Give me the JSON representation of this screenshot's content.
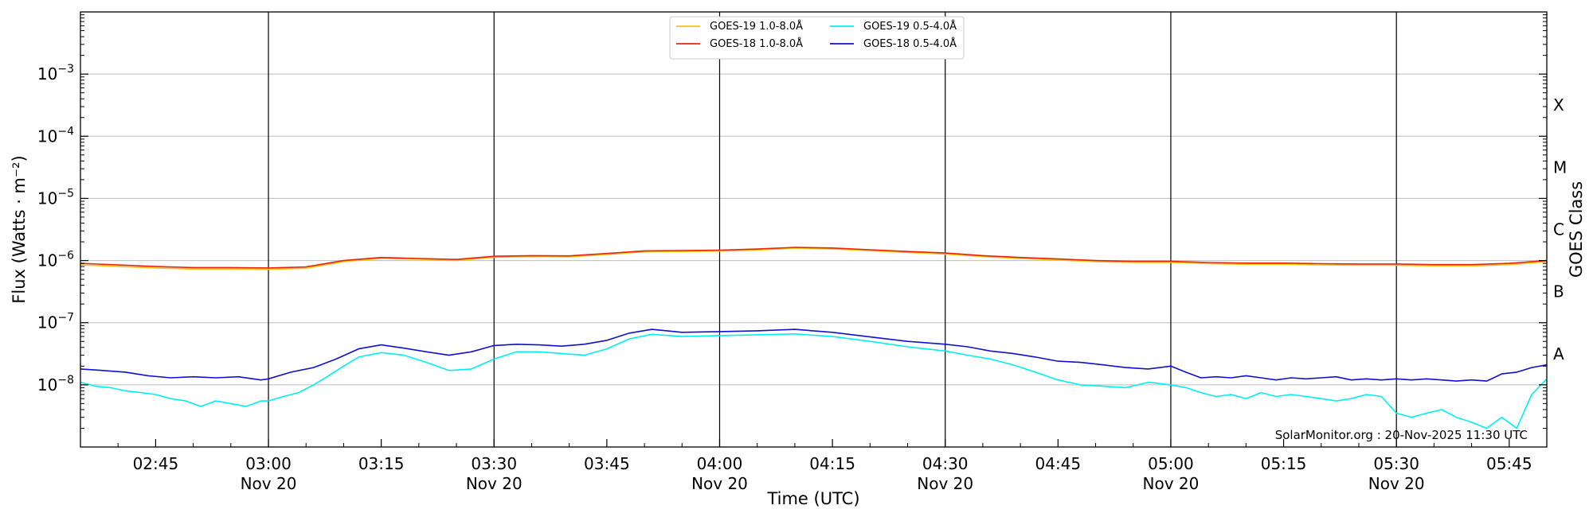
{
  "chart_data": {
    "type": "line",
    "xlabel": "Time (UTC)",
    "ylabel": "Flux (Watts · m⁻²)",
    "ylabel_right": "GOES Class",
    "credit": "SolarMonitor.org : 20-Nov-2025 11:30 UTC",
    "xlim": [
      "02:35",
      "05:50"
    ],
    "ylim": [
      1e-09,
      0.01
    ],
    "yscale": "log",
    "grid": "horizontal",
    "legend_position": "top-center",
    "x_ticks": [
      {
        "t": "02:45",
        "label": "02:45",
        "sub": ""
      },
      {
        "t": "03:00",
        "label": "03:00",
        "sub": "Nov 20"
      },
      {
        "t": "03:15",
        "label": "03:15",
        "sub": ""
      },
      {
        "t": "03:30",
        "label": "03:30",
        "sub": "Nov 20"
      },
      {
        "t": "03:45",
        "label": "03:45",
        "sub": ""
      },
      {
        "t": "04:00",
        "label": "04:00",
        "sub": "Nov 20"
      },
      {
        "t": "04:15",
        "label": "04:15",
        "sub": ""
      },
      {
        "t": "04:30",
        "label": "04:30",
        "sub": "Nov 20"
      },
      {
        "t": "04:45",
        "label": "04:45",
        "sub": ""
      },
      {
        "t": "05:00",
        "label": "05:00",
        "sub": "Nov 20"
      },
      {
        "t": "05:15",
        "label": "05:15",
        "sub": ""
      },
      {
        "t": "05:30",
        "label": "05:30",
        "sub": "Nov 20"
      },
      {
        "t": "05:45",
        "label": "05:45",
        "sub": ""
      }
    ],
    "y_ticks": [
      {
        "value": 1e-08,
        "mantissa": "10",
        "exp": "−8"
      },
      {
        "value": 1e-07,
        "mantissa": "10",
        "exp": "−7"
      },
      {
        "value": 1e-06,
        "mantissa": "10",
        "exp": "−6"
      },
      {
        "value": 1e-05,
        "mantissa": "10",
        "exp": "−5"
      },
      {
        "value": 0.0001,
        "mantissa": "10",
        "exp": "−4"
      },
      {
        "value": 0.001,
        "mantissa": "10",
        "exp": "−3"
      }
    ],
    "vlines": [
      "03:00",
      "03:30",
      "04:00",
      "04:30",
      "05:00",
      "05:30"
    ],
    "goes_classes": [
      {
        "label": "A",
        "value": 3.16e-08
      },
      {
        "label": "B",
        "value": 3.16e-07
      },
      {
        "label": "C",
        "value": 3.16e-06
      },
      {
        "label": "M",
        "value": 3.16e-05
      },
      {
        "label": "X",
        "value": 0.000316
      }
    ],
    "series": [
      {
        "name": "GOES-19 1.0-8.0Å",
        "color": "#f0c419",
        "x": [
          "02:35",
          "02:40",
          "02:45",
          "02:50",
          "02:55",
          "03:00",
          "03:05",
          "03:10",
          "03:15",
          "03:20",
          "03:25",
          "03:30",
          "03:35",
          "03:40",
          "03:45",
          "03:50",
          "03:55",
          "04:00",
          "04:05",
          "04:10",
          "04:15",
          "04:20",
          "04:25",
          "04:30",
          "04:35",
          "04:40",
          "04:45",
          "04:50",
          "04:55",
          "05:00",
          "05:05",
          "05:10",
          "05:15",
          "05:20",
          "05:25",
          "05:30",
          "05:35",
          "05:40",
          "05:45",
          "05:50"
        ],
        "values": [
          8.5e-07,
          8e-07,
          7.6e-07,
          7.3e-07,
          7.3e-07,
          7.2e-07,
          7.5e-07,
          9.6e-07,
          1.08e-06,
          1.05e-06,
          1e-06,
          1.13e-06,
          1.16e-06,
          1.15e-06,
          1.25e-06,
          1.38e-06,
          1.4e-06,
          1.42e-06,
          1.48e-06,
          1.58e-06,
          1.54e-06,
          1.44e-06,
          1.35e-06,
          1.27e-06,
          1.16e-06,
          1.08e-06,
          1.02e-06,
          9.6e-07,
          9.3e-07,
          9.3e-07,
          8.9e-07,
          8.7e-07,
          8.7e-07,
          8.5e-07,
          8.4e-07,
          8.4e-07,
          8.2e-07,
          8.2e-07,
          8.6e-07,
          9.6e-07
        ]
      },
      {
        "name": "GOES-18 1.0-8.0Å",
        "color": "#e8250c",
        "x": [
          "02:35",
          "02:40",
          "02:45",
          "02:50",
          "02:55",
          "03:00",
          "03:05",
          "03:10",
          "03:15",
          "03:20",
          "03:25",
          "03:30",
          "03:35",
          "03:40",
          "03:45",
          "03:50",
          "03:55",
          "04:00",
          "04:05",
          "04:10",
          "04:15",
          "04:20",
          "04:25",
          "04:30",
          "04:35",
          "04:40",
          "04:45",
          "04:50",
          "04:55",
          "05:00",
          "05:05",
          "05:10",
          "05:15",
          "05:20",
          "05:25",
          "05:30",
          "05:35",
          "05:40",
          "05:45",
          "05:50"
        ],
        "values": [
          9e-07,
          8.5e-07,
          8e-07,
          7.7e-07,
          7.7e-07,
          7.6e-07,
          7.9e-07,
          1e-06,
          1.12e-06,
          1.08e-06,
          1.04e-06,
          1.17e-06,
          1.2e-06,
          1.19e-06,
          1.3e-06,
          1.43e-06,
          1.45e-06,
          1.47e-06,
          1.53e-06,
          1.63e-06,
          1.59e-06,
          1.49e-06,
          1.4e-06,
          1.32e-06,
          1.2e-06,
          1.12e-06,
          1.06e-06,
          1e-06,
          9.7e-07,
          9.7e-07,
          9.3e-07,
          9.1e-07,
          9.1e-07,
          8.9e-07,
          8.8e-07,
          8.8e-07,
          8.6e-07,
          8.6e-07,
          9e-07,
          1e-06
        ]
      },
      {
        "name": "GOES-19 0.5-4.0Å",
        "color": "#00f0f0",
        "x": [
          "02:35",
          "02:37",
          "02:39",
          "02:41",
          "02:43",
          "02:45",
          "02:47",
          "02:49",
          "02:51",
          "02:53",
          "02:55",
          "02:57",
          "02:59",
          "03:00",
          "03:02",
          "03:04",
          "03:06",
          "03:08",
          "03:10",
          "03:12",
          "03:15",
          "03:18",
          "03:21",
          "03:24",
          "03:27",
          "03:30",
          "03:33",
          "03:36",
          "03:39",
          "03:42",
          "03:45",
          "03:48",
          "03:51",
          "03:55",
          "04:00",
          "04:05",
          "04:10",
          "04:15",
          "04:20",
          "04:25",
          "04:30",
          "04:33",
          "04:36",
          "04:39",
          "04:42",
          "04:45",
          "04:48",
          "04:51",
          "04:54",
          "04:57",
          "05:00",
          "05:02",
          "05:04",
          "05:06",
          "05:08",
          "05:10",
          "05:12",
          "05:14",
          "05:16",
          "05:18",
          "05:20",
          "05:22",
          "05:24",
          "05:26",
          "05:28",
          "05:30",
          "05:32",
          "05:34",
          "05:36",
          "05:38",
          "05:40",
          "05:42",
          "05:44",
          "05:46",
          "05:48",
          "05:50"
        ],
        "values": [
          1.1e-08,
          9.5e-09,
          9e-09,
          8e-09,
          7.5e-09,
          7e-09,
          6e-09,
          5.5e-09,
          4.5e-09,
          5.5e-09,
          5e-09,
          4.5e-09,
          5.5e-09,
          5.5e-09,
          6.5e-09,
          7.5e-09,
          1e-08,
          1.4e-08,
          2e-08,
          2.8e-08,
          3.3e-08,
          3e-08,
          2.3e-08,
          1.7e-08,
          1.8e-08,
          2.6e-08,
          3.4e-08,
          3.4e-08,
          3.2e-08,
          3e-08,
          3.8e-08,
          5.5e-08,
          6.5e-08,
          6e-08,
          6.2e-08,
          6.4e-08,
          6.6e-08,
          6e-08,
          5e-08,
          4.1e-08,
          3.5e-08,
          3e-08,
          2.6e-08,
          2.1e-08,
          1.6e-08,
          1.2e-08,
          1e-08,
          9.5e-09,
          9e-09,
          1.1e-08,
          1e-08,
          9e-09,
          7.5e-09,
          6.5e-09,
          7e-09,
          6e-09,
          7.5e-09,
          6.5e-09,
          7e-09,
          6.5e-09,
          6e-09,
          5.5e-09,
          6e-09,
          7e-09,
          6.5e-09,
          3.5e-09,
          3e-09,
          3.5e-09,
          4e-09,
          3e-09,
          2.5e-09,
          2e-09,
          3e-09,
          2e-09,
          7e-09,
          1.25e-08
        ]
      },
      {
        "name": "GOES-18 0.5-4.0Å",
        "color": "#1010d0",
        "x": [
          "02:35",
          "02:38",
          "02:41",
          "02:44",
          "02:47",
          "02:50",
          "02:53",
          "02:56",
          "02:59",
          "03:00",
          "03:03",
          "03:06",
          "03:09",
          "03:12",
          "03:15",
          "03:18",
          "03:21",
          "03:24",
          "03:27",
          "03:30",
          "03:33",
          "03:36",
          "03:39",
          "03:42",
          "03:45",
          "03:48",
          "03:51",
          "03:55",
          "04:00",
          "04:05",
          "04:10",
          "04:15",
          "04:20",
          "04:25",
          "04:30",
          "04:33",
          "04:36",
          "04:39",
          "04:42",
          "04:45",
          "04:48",
          "04:51",
          "04:54",
          "04:57",
          "05:00",
          "05:02",
          "05:04",
          "05:06",
          "05:08",
          "05:10",
          "05:12",
          "05:14",
          "05:16",
          "05:18",
          "05:20",
          "05:22",
          "05:24",
          "05:26",
          "05:28",
          "05:30",
          "05:32",
          "05:34",
          "05:36",
          "05:38",
          "05:40",
          "05:42",
          "05:44",
          "05:46",
          "05:48",
          "05:50"
        ],
        "values": [
          1.8e-08,
          1.7e-08,
          1.6e-08,
          1.4e-08,
          1.3e-08,
          1.35e-08,
          1.3e-08,
          1.35e-08,
          1.2e-08,
          1.25e-08,
          1.6e-08,
          1.9e-08,
          2.6e-08,
          3.8e-08,
          4.4e-08,
          3.9e-08,
          3.4e-08,
          3e-08,
          3.4e-08,
          4.3e-08,
          4.5e-08,
          4.4e-08,
          4.2e-08,
          4.5e-08,
          5.2e-08,
          6.8e-08,
          7.8e-08,
          7e-08,
          7.2e-08,
          7.4e-08,
          7.8e-08,
          7e-08,
          5.9e-08,
          5e-08,
          4.5e-08,
          4.1e-08,
          3.5e-08,
          3.2e-08,
          2.8e-08,
          2.4e-08,
          2.3e-08,
          2.1e-08,
          1.9e-08,
          1.8e-08,
          2e-08,
          1.6e-08,
          1.3e-08,
          1.35e-08,
          1.3e-08,
          1.4e-08,
          1.3e-08,
          1.2e-08,
          1.3e-08,
          1.25e-08,
          1.3e-08,
          1.35e-08,
          1.2e-08,
          1.25e-08,
          1.2e-08,
          1.25e-08,
          1.2e-08,
          1.25e-08,
          1.2e-08,
          1.15e-08,
          1.2e-08,
          1.15e-08,
          1.5e-08,
          1.6e-08,
          1.9e-08,
          2.1e-08
        ]
      }
    ]
  }
}
